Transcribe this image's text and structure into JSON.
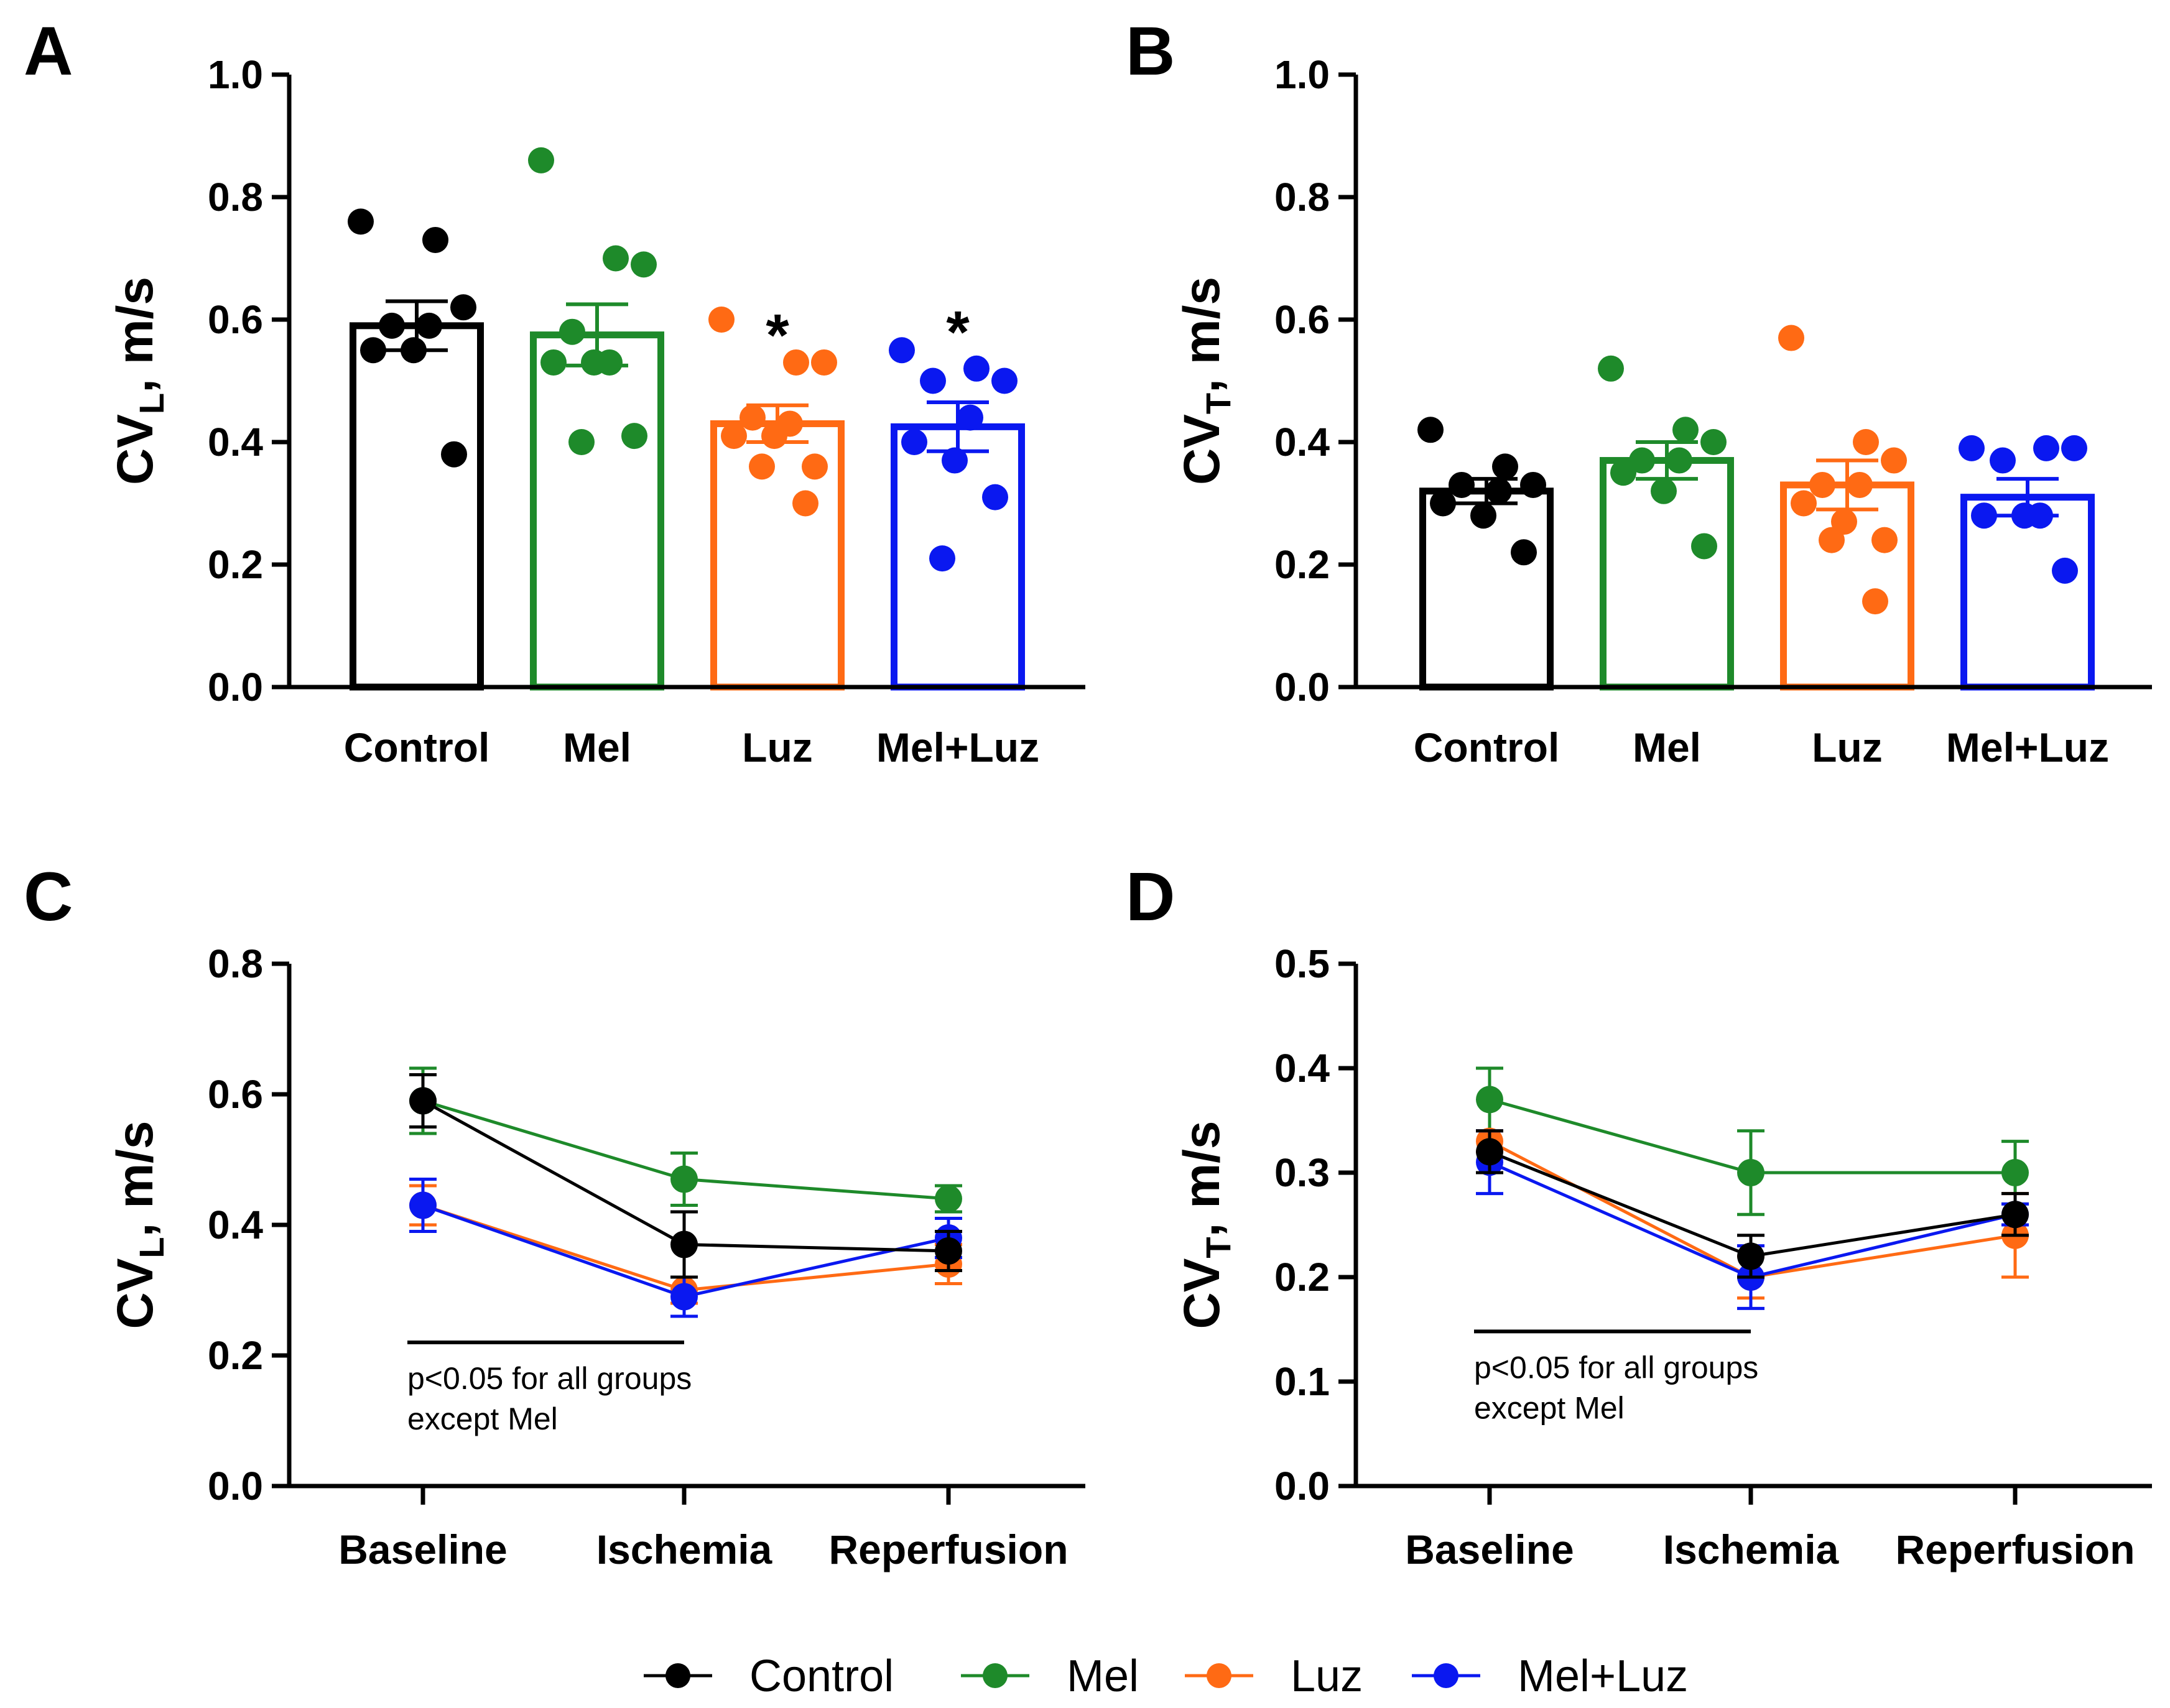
{
  "colors": {
    "Control": "#000000",
    "Mel": "#1e8a2a",
    "Luz": "#ff6a14",
    "Mel+Luz": "#0a18f0"
  },
  "legend": [
    "Control",
    "Mel",
    "Luz",
    "Mel+Luz"
  ],
  "chart_data": [
    {
      "panel": "A",
      "type": "bar",
      "ylabel_main": "CV",
      "ylabel_sub": "L",
      "ylabel_unit": ", m/s",
      "ylim": [
        0,
        1.0
      ],
      "yticks": [
        "0.0",
        "0.2",
        "0.4",
        "0.6",
        "0.8",
        "1.0"
      ],
      "categories": [
        "Control",
        "Mel",
        "Luz",
        "Mel+Luz"
      ],
      "values": [
        0.59,
        0.575,
        0.43,
        0.425
      ],
      "sem": [
        0.04,
        0.05,
        0.03,
        0.04
      ],
      "significance": [
        "",
        "",
        "*",
        "*"
      ],
      "points": [
        [
          0.76,
          0.73,
          0.62,
          0.59,
          0.59,
          0.55,
          0.55,
          0.38
        ],
        [
          0.86,
          0.7,
          0.69,
          0.58,
          0.53,
          0.53,
          0.53,
          0.41,
          0.4
        ],
        [
          0.6,
          0.53,
          0.53,
          0.44,
          0.43,
          0.41,
          0.41,
          0.36,
          0.36,
          0.3
        ],
        [
          0.55,
          0.52,
          0.5,
          0.5,
          0.44,
          0.4,
          0.37,
          0.31,
          0.21
        ]
      ]
    },
    {
      "panel": "B",
      "type": "bar",
      "ylabel_main": "CV",
      "ylabel_sub": "T",
      "ylabel_unit": ", m/s",
      "ylim": [
        0,
        1.0
      ],
      "yticks": [
        "0.0",
        "0.2",
        "0.4",
        "0.6",
        "0.8",
        "1.0"
      ],
      "categories": [
        "Control",
        "Mel",
        "Luz",
        "Mel+Luz"
      ],
      "values": [
        0.32,
        0.37,
        0.33,
        0.31
      ],
      "sem": [
        0.02,
        0.03,
        0.04,
        0.03
      ],
      "significance": [
        "",
        "",
        "",
        ""
      ],
      "points": [
        [
          0.42,
          0.36,
          0.33,
          0.33,
          0.32,
          0.3,
          0.28,
          0.22
        ],
        [
          0.52,
          0.42,
          0.4,
          0.37,
          0.37,
          0.35,
          0.32,
          0.23
        ],
        [
          0.57,
          0.4,
          0.37,
          0.33,
          0.33,
          0.3,
          0.27,
          0.24,
          0.24,
          0.14
        ],
        [
          0.39,
          0.39,
          0.39,
          0.37,
          0.28,
          0.28,
          0.28,
          0.19
        ]
      ]
    },
    {
      "panel": "C",
      "type": "line",
      "ylabel_main": "CV",
      "ylabel_sub": "L",
      "ylabel_unit": ", m/s",
      "ylim": [
        0,
        0.8
      ],
      "yticks": [
        "0.0",
        "0.2",
        "0.4",
        "0.6",
        "0.8"
      ],
      "categories": [
        "Baseline",
        "Ischemia",
        "Reperfusion"
      ],
      "series": [
        {
          "name": "Mel",
          "values": [
            0.59,
            0.47,
            0.44
          ],
          "err": [
            0.05,
            0.04,
            0.02
          ]
        },
        {
          "name": "Luz",
          "values": [
            0.43,
            0.3,
            0.34
          ],
          "err": [
            0.03,
            0.02,
            0.03
          ]
        },
        {
          "name": "Mel+Luz",
          "values": [
            0.43,
            0.29,
            0.38
          ],
          "err": [
            0.04,
            0.03,
            0.03
          ]
        },
        {
          "name": "Control",
          "values": [
            0.59,
            0.37,
            0.36
          ],
          "err": [
            0.04,
            0.05,
            0.03
          ]
        }
      ],
      "annotation": [
        "p<0.05 for all groups",
        "except Mel"
      ],
      "annotation_span": [
        "Baseline",
        "Ischemia"
      ],
      "annotation_y": 0.22
    },
    {
      "panel": "D",
      "type": "line",
      "ylabel_main": "CV",
      "ylabel_sub": "T",
      "ylabel_unit": ", m/s",
      "ylim": [
        0,
        0.5
      ],
      "yticks": [
        "0.0",
        "0.1",
        "0.2",
        "0.3",
        "0.4",
        "0.5"
      ],
      "categories": [
        "Baseline",
        "Ischemia",
        "Reperfusion"
      ],
      "series": [
        {
          "name": "Mel",
          "values": [
            0.37,
            0.3,
            0.3
          ],
          "err": [
            0.03,
            0.04,
            0.03
          ]
        },
        {
          "name": "Luz",
          "values": [
            0.33,
            0.2,
            0.24
          ],
          "err": [
            0.01,
            0.02,
            0.04
          ]
        },
        {
          "name": "Mel+Luz",
          "values": [
            0.31,
            0.2,
            0.26
          ],
          "err": [
            0.03,
            0.03,
            0.01
          ]
        },
        {
          "name": "Control",
          "values": [
            0.32,
            0.22,
            0.26
          ],
          "err": [
            0.02,
            0.02,
            0.02
          ]
        }
      ],
      "annotation": [
        "p<0.05 for all groups",
        "except Mel"
      ],
      "annotation_span": [
        "Baseline",
        "Ischemia"
      ],
      "annotation_y": 0.148
    }
  ]
}
